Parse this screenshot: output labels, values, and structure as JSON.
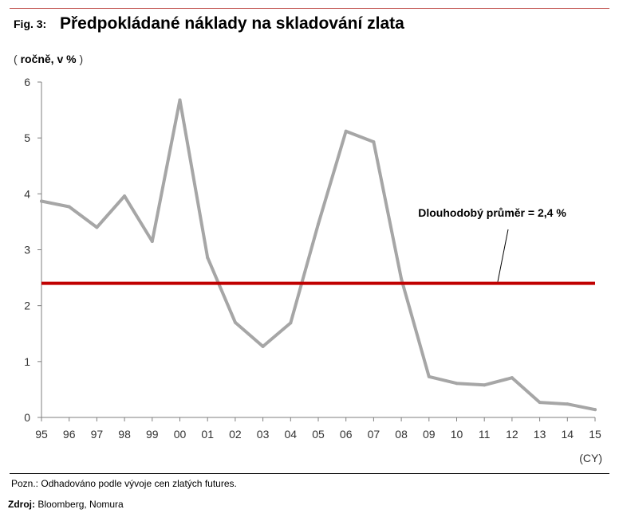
{
  "header": {
    "fig_label": "Fig. 3:",
    "title": "Předpokládané náklady na skladování zlata",
    "unit_open": "(",
    "unit": "ročně, v %",
    "unit_close": ")"
  },
  "chart_data": {
    "type": "line",
    "title": "Předpokládané náklady na skladování zlata",
    "ylabel": "ročně, v %",
    "xlabel": "(CY)",
    "categories": [
      "95",
      "96",
      "97",
      "98",
      "99",
      "00",
      "01",
      "02",
      "03",
      "04",
      "05",
      "06",
      "07",
      "08",
      "09",
      "10",
      "11",
      "12",
      "13",
      "14",
      "15"
    ],
    "series": [
      {
        "name": "",
        "color": "#a6a6a6",
        "values": [
          3.87,
          3.77,
          3.4,
          3.96,
          3.15,
          5.68,
          2.86,
          1.7,
          1.27,
          1.69,
          3.46,
          5.12,
          4.93,
          2.48,
          0.73,
          0.61,
          0.58,
          0.71,
          0.27,
          0.24,
          0.14
        ]
      }
    ],
    "reference_line": {
      "value": 2.4,
      "label": "Dlouhodobý průměr = 2,4 %",
      "color": "#c00000"
    },
    "ylim": [
      0,
      6
    ],
    "yticks": [
      "0",
      "1",
      "2",
      "3",
      "4",
      "5",
      "6"
    ],
    "grid": false,
    "legend": "none"
  },
  "footer": {
    "note": "Pozn.: Odhadováno podle vývoje cen zlatých futures.",
    "source_label": "Zdroj:",
    "source_text": " Bloomberg, Nomura"
  }
}
